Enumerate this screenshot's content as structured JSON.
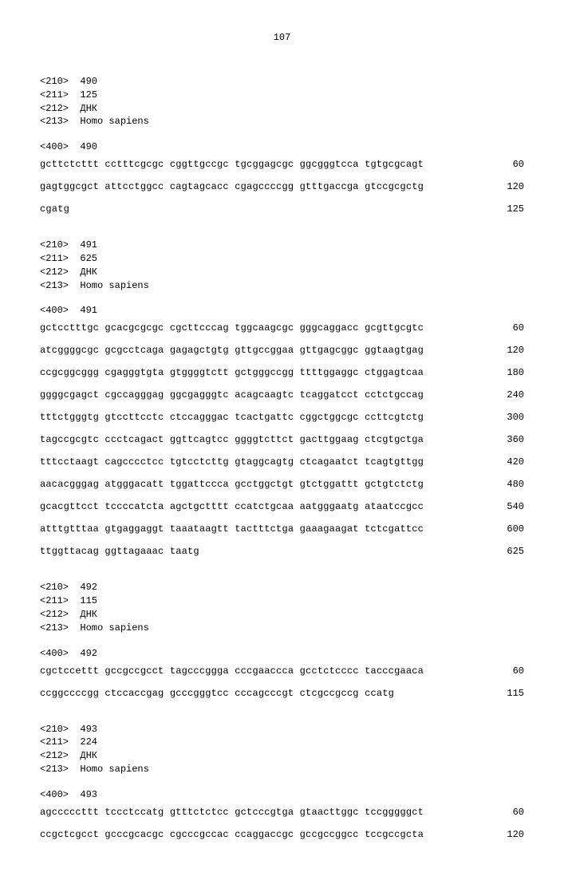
{
  "page_number": "107",
  "entries": [
    {
      "headers": [
        "<210>  490",
        "<211>  125",
        "<212>  ДНК",
        "<213>  Homo sapiens"
      ],
      "origin": "<400>  490",
      "seq_lines": [
        {
          "text": "gcttctcttt cctttcgcgc cggttgccgc tgcggagcgc ggcgggtcca tgtgcgcagt",
          "num": "60"
        },
        {
          "text": "gagtggcgct attcctggcc cagtagcacc cgagccccgg gtttgaccga gtccgcgctg",
          "num": "120"
        },
        {
          "text": "cgatg",
          "num": "125"
        }
      ]
    },
    {
      "headers": [
        "<210>  491",
        "<211>  625",
        "<212>  ДНК",
        "<213>  Homo sapiens"
      ],
      "origin": "<400>  491",
      "seq_lines": [
        {
          "text": "gctcctttgc gcacgcgcgc cgcttcccag tggcaagcgc gggcaggacc gcgttgcgtc",
          "num": "60"
        },
        {
          "text": "atcggggcgc gcgcctcaga gagagctgtg gttgccggaa gttgagcggc ggtaagtgag",
          "num": "120"
        },
        {
          "text": "ccgcggcggg cgagggtgta gtggggtctt gctgggccgg ttttggaggc ctggagtcaa",
          "num": "180"
        },
        {
          "text": "ggggcgagct cgccagggag ggcgagggtc acagcaagtc tcaggatcct cctctgccag",
          "num": "240"
        },
        {
          "text": "tttctgggtg gtccttcctc ctccagggac tcactgattc cggctggcgc ccttcgtctg",
          "num": "300"
        },
        {
          "text": "tagccgcgtc ccctcagact ggttcagtcc ggggtcttct gacttggaag ctcgtgctga",
          "num": "360"
        },
        {
          "text": "tttcctaagt cagcccctcc tgtcctcttg gtaggcagtg ctcagaatct tcagtgttgg",
          "num": "420"
        },
        {
          "text": "aacacgggag atgggacatt tggattccca gcctggctgt gtctggattt gctgtctctg",
          "num": "480"
        },
        {
          "text": "gcacgttcct tccccatcta agctgctttt ccatctgcaa aatgggaatg ataatccgcc",
          "num": "540"
        },
        {
          "text": "atttgtttaa gtgaggaggt taaataagtt tactttctga gaaagaagat tctcgattcc",
          "num": "600"
        },
        {
          "text": "ttggttacag ggttagaaac taatg",
          "num": "625"
        }
      ]
    },
    {
      "headers": [
        "<210>  492",
        "<211>  115",
        "<212>  ДНК",
        "<213>  Homo sapiens"
      ],
      "origin": "<400>  492",
      "seq_lines": [
        {
          "text": "cgctccettt gccgccgcct tagcccggga cccgaaccca gcctctcccc tacccgaaca",
          "num": "60"
        },
        {
          "text": "ccggccccgg ctccaccgag gcccgggtcc cccagcccgt ctcgccgccg ccatg",
          "num": "115"
        }
      ]
    },
    {
      "headers": [
        "<210>  493",
        "<211>  224",
        "<212>  ДНК",
        "<213>  Homo sapiens"
      ],
      "origin": "<400>  493",
      "seq_lines": [
        {
          "text": "agcccccttt tccctccatg gtttctctcc gctcccgtga gtaacttggc tccgggggct",
          "num": "60"
        },
        {
          "text": "ccgctcgcct gcccgcacgc cgcccgccac ccaggaccgc gccgccggcc tccgccgcta",
          "num": "120"
        }
      ]
    }
  ]
}
